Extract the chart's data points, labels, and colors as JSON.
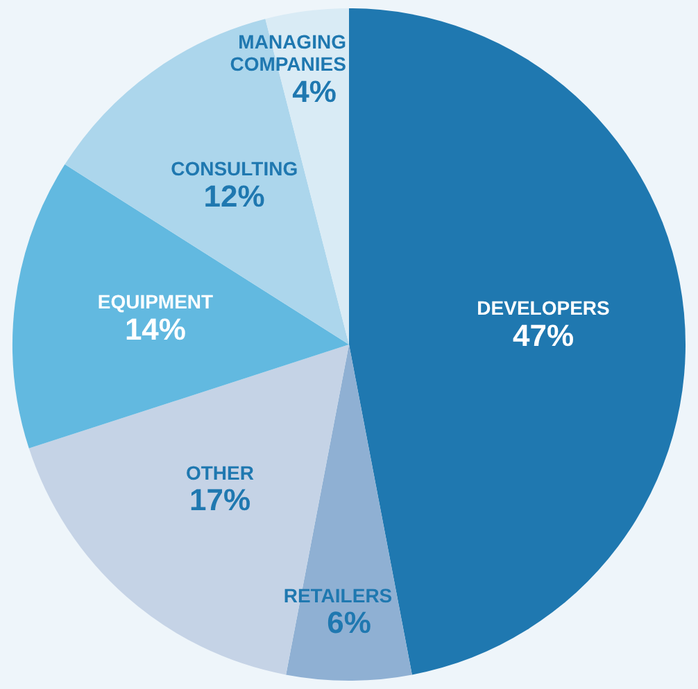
{
  "chart_data": {
    "type": "pie",
    "categories": [
      "DEVELOPERS",
      "RETAILERS",
      "OTHER",
      "EQUIPMENT",
      "CONSULTING",
      "MANAGING COMPANIES"
    ],
    "values": [
      47,
      6,
      17,
      14,
      12,
      4
    ],
    "value_labels": [
      "47%",
      "6%",
      "17%",
      "14%",
      "12%",
      "4%"
    ],
    "colors": [
      "#1f78b0",
      "#8fb0d3",
      "#c5d3e6",
      "#62b9e0",
      "#acd6ec",
      "#d9ebf5"
    ],
    "legend": false
  }
}
